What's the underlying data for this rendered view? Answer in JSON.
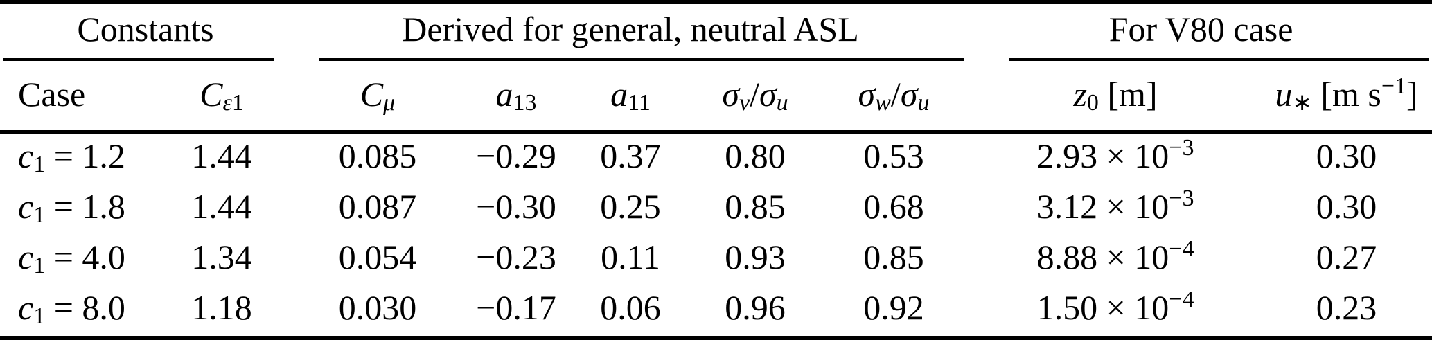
{
  "table": {
    "group_headers": [
      {
        "label": "Constants",
        "colspan": 2
      },
      {
        "label": "Derived for general, neutral ASL",
        "colspan": 5
      },
      {
        "label": "For V80 case",
        "colspan": 2
      }
    ],
    "columns": [
      {
        "id": "case",
        "html": "Case"
      },
      {
        "id": "c-epsilon-1",
        "html": "<i>C</i><sub><i>ε</i>1</sub>"
      },
      {
        "id": "c-mu",
        "html": "<i>C</i><sub><i>μ</i></sub>"
      },
      {
        "id": "a13",
        "html": "<i>a</i><sub>13</sub>"
      },
      {
        "id": "a11",
        "html": "<i>a</i><sub>11</sub>"
      },
      {
        "id": "sigma-v-over-u",
        "html": "<i>σ</i><sub><i>v</i></sub>/<i>σ</i><sub><i>u</i></sub>"
      },
      {
        "id": "sigma-w-over-u",
        "html": "<i>σ</i><sub><i>w</i></sub>/<i>σ</i><sub><i>u</i></sub>"
      },
      {
        "id": "z0",
        "html": "<i>z</i><sub>0</sub> [m]"
      },
      {
        "id": "u-star",
        "html": "<i>u</i><sub>∗</sub> [m s<sup>−1</sup>]"
      }
    ],
    "rows": [
      {
        "case_html": "<i>c</i><sub>1</sub> = 1.2",
        "cells": [
          "1.44",
          "0.085",
          "−0.29",
          "0.37",
          "0.80",
          "0.53",
          "2.93 × 10<sup>−3</sup>",
          "0.30"
        ]
      },
      {
        "case_html": "<i>c</i><sub>1</sub> = 1.8",
        "cells": [
          "1.44",
          "0.087",
          "−0.30",
          "0.25",
          "0.85",
          "0.68",
          "3.12 × 10<sup>−3</sup>",
          "0.30"
        ]
      },
      {
        "case_html": "<i>c</i><sub>1</sub> = 4.0",
        "cells": [
          "1.34",
          "0.054",
          "−0.23",
          "0.11",
          "0.93",
          "0.85",
          "8.88 × 10<sup>−4</sup>",
          "0.27"
        ]
      },
      {
        "case_html": "<i>c</i><sub>1</sub> = 8.0",
        "cells": [
          "1.18",
          "0.030",
          "−0.17",
          "0.06",
          "0.96",
          "0.92",
          "1.50 × 10<sup>−4</sup>",
          "0.23"
        ]
      }
    ],
    "colors": {
      "text": "#000000",
      "background": "#ffffff",
      "rule": "#000000"
    }
  }
}
